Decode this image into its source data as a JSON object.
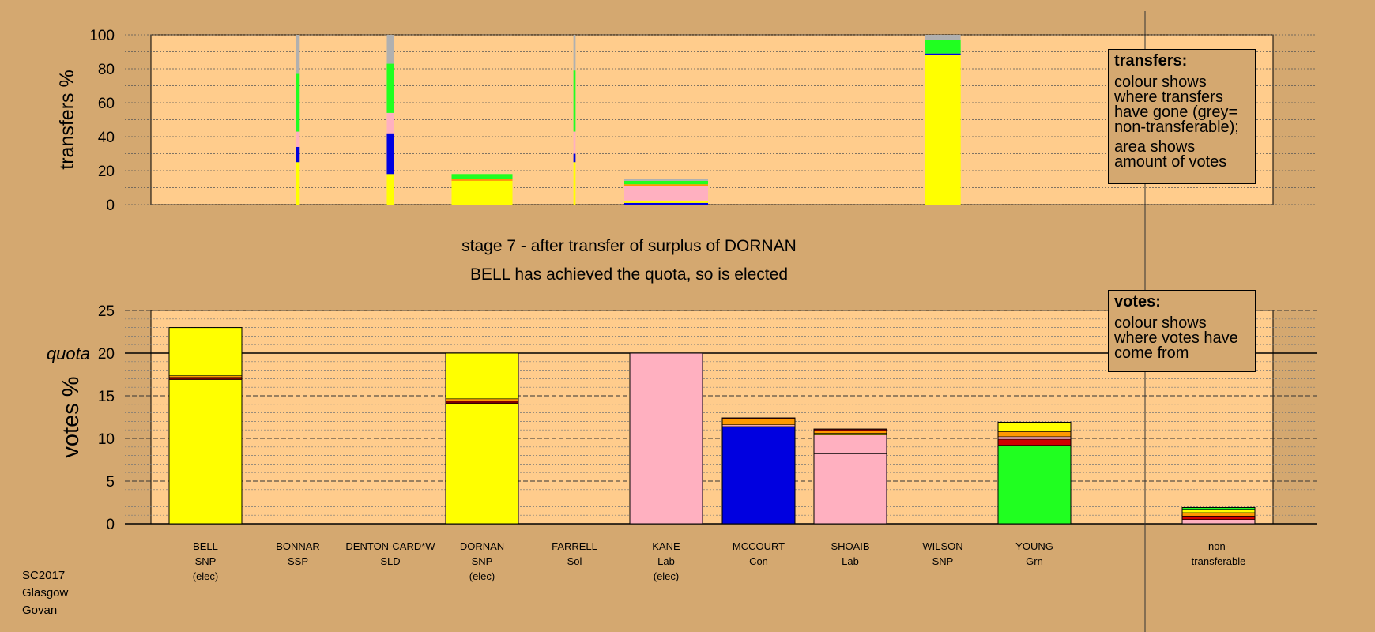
{
  "caption": {
    "line1": "stage 7 - after transfer of surplus of DORNAN",
    "line2": "BELL has achieved the quota, so is elected"
  },
  "legend_transfers": {
    "title": "transfers:",
    "p1": "colour shows where transfers have gone (grey= non-transferable);",
    "p2": "area shows amount of votes"
  },
  "legend_votes": {
    "title": "votes:",
    "p1": "colour shows where votes have come from"
  },
  "corner": {
    "line1": "SC2017",
    "line2": "Glasgow",
    "line3": "Govan"
  },
  "colors": {
    "background": "#d4a870",
    "plot_area": "#ffcc8c",
    "SNP": "#ffff00",
    "Lab": "#ffb0c0",
    "Con": "#0000e0",
    "Grn": "#20ff20",
    "SSP": "#d00000",
    "SLD": "#ff9900",
    "Sol": "#800000",
    "non_transferable": "#b0b0b0"
  },
  "chart_data": [
    {
      "type": "bar",
      "stacked": true,
      "ylabel": "transfers %",
      "ylim": [
        0,
        100
      ],
      "yticks": [
        0,
        20,
        40,
        60,
        80,
        100
      ],
      "grid": true,
      "categories": [
        "BELL",
        "BONNAR",
        "DENTON-CARD*W",
        "DORNAN",
        "FARRELL",
        "KANE",
        "MCCOURT",
        "SHOAIB",
        "WILSON",
        "YOUNG"
      ],
      "width_note": "bar width proportional to amount of votes transferred",
      "bars": [
        {
          "category": "BONNAR",
          "width": 0.05,
          "segments": [
            {
              "party": "SNP",
              "value": 25
            },
            {
              "party": "Con",
              "value": 9
            },
            {
              "party": "Lab",
              "value": 9
            },
            {
              "party": "Grn",
              "value": 34
            },
            {
              "party": "non_transferable",
              "value": 23
            }
          ]
        },
        {
          "category": "DENTON-CARD*W",
          "width": 0.1,
          "segments": [
            {
              "party": "SNP",
              "value": 18
            },
            {
              "party": "Con",
              "value": 24
            },
            {
              "party": "Lab",
              "value": 12
            },
            {
              "party": "Grn",
              "value": 29
            },
            {
              "party": "non_transferable",
              "value": 17
            }
          ]
        },
        {
          "category": "DORNAN",
          "width": 0.85,
          "segments": [
            {
              "party": "SNP",
              "value": 14
            },
            {
              "party": "SLD",
              "value": 1
            },
            {
              "party": "Grn",
              "value": 3
            }
          ]
        },
        {
          "category": "FARRELL",
          "width": 0.03,
          "segments": [
            {
              "party": "SNP",
              "value": 25
            },
            {
              "party": "Con",
              "value": 5
            },
            {
              "party": "Lab",
              "value": 13
            },
            {
              "party": "Grn",
              "value": 36
            },
            {
              "party": "non_transferable",
              "value": 21
            }
          ]
        },
        {
          "category": "KANE",
          "width": 1.17,
          "segments": [
            {
              "party": "Con",
              "value": 1
            },
            {
              "party": "SNP",
              "value": 1
            },
            {
              "party": "Lab",
              "value": 9
            },
            {
              "party": "SLD",
              "value": 1
            },
            {
              "party": "Grn",
              "value": 2
            },
            {
              "party": "non_transferable",
              "value": 1
            }
          ]
        },
        {
          "category": "WILSON",
          "width": 0.5,
          "segments": [
            {
              "party": "SNP",
              "value": 88
            },
            {
              "party": "Con",
              "value": 1
            },
            {
              "party": "Grn",
              "value": 8
            },
            {
              "party": "non_transferable",
              "value": 3
            }
          ]
        }
      ]
    },
    {
      "type": "bar",
      "stacked": true,
      "ylabel": "votes %",
      "ylim": [
        0,
        25
      ],
      "yticks": [
        0,
        5,
        10,
        15,
        20,
        25
      ],
      "grid": true,
      "quota": 20,
      "quota_label": "quota",
      "categories": [
        "BELL",
        "BONNAR",
        "DENTON-CARD*W",
        "DORNAN",
        "FARRELL",
        "KANE",
        "MCCOURT",
        "SHOAIB",
        "WILSON",
        "YOUNG",
        "non-transferable"
      ],
      "candidates": [
        {
          "name": "BELL",
          "party": "SNP",
          "status": "(elec)",
          "segments": [
            {
              "party": "SNP",
              "value": 16.9
            },
            {
              "party": "Sol",
              "value": 0.25
            },
            {
              "party": "SLD",
              "value": 0.2
            },
            {
              "party": "SNP",
              "value": 3.25
            },
            {
              "party": "SNP",
              "value": 2.4
            }
          ]
        },
        {
          "name": "BONNAR",
          "party": "SSP",
          "status": "",
          "segments": []
        },
        {
          "name": "DENTON-CARD*W",
          "party": "SLD",
          "status": "",
          "segments": []
        },
        {
          "name": "DORNAN",
          "party": "SNP",
          "status": "(elec)",
          "segments": [
            {
              "party": "SNP",
              "value": 14.1
            },
            {
              "party": "Sol",
              "value": 0.3
            },
            {
              "party": "SLD",
              "value": 0.25
            },
            {
              "party": "SNP",
              "value": 5.35
            }
          ]
        },
        {
          "name": "FARRELL",
          "party": "Sol",
          "status": "",
          "segments": []
        },
        {
          "name": "KANE",
          "party": "Lab",
          "status": "(elec)",
          "segments": [
            {
              "party": "Lab",
              "value": 20
            }
          ]
        },
        {
          "name": "MCCOURT",
          "party": "Con",
          "status": "",
          "segments": [
            {
              "party": "Con",
              "value": 11.4
            },
            {
              "party": "Lab",
              "value": 0.2
            },
            {
              "party": "SLD",
              "value": 0.7
            },
            {
              "party": "Sol",
              "value": 0.1
            }
          ]
        },
        {
          "name": "SHOAIB",
          "party": "Lab",
          "status": "",
          "segments": [
            {
              "party": "Lab",
              "value": 8.2
            },
            {
              "party": "Lab",
              "value": 2.2
            },
            {
              "party": "SNP",
              "value": 0.2
            },
            {
              "party": "SLD",
              "value": 0.3
            },
            {
              "party": "Sol",
              "value": 0.2
            }
          ]
        },
        {
          "name": "WILSON",
          "party": "SNP",
          "status": "",
          "segments": []
        },
        {
          "name": "YOUNG",
          "party": "Grn",
          "status": "",
          "segments": [
            {
              "party": "Grn",
              "value": 9.2
            },
            {
              "party": "SSP",
              "value": 0.7
            },
            {
              "party": "Lab",
              "value": 0.3
            },
            {
              "party": "SLD",
              "value": 0.6
            },
            {
              "party": "SNP",
              "value": 1.1
            }
          ]
        },
        {
          "name": "non-",
          "party": "transferable",
          "status": "",
          "segments": [
            {
              "party": "Lab",
              "value": 0.5
            },
            {
              "party": "SSP",
              "value": 0.3
            },
            {
              "party": "Sol",
              "value": 0.1
            },
            {
              "party": "SLD",
              "value": 0.4
            },
            {
              "party": "SNP",
              "value": 0.4
            },
            {
              "party": "Grn",
              "value": 0.2
            }
          ]
        }
      ]
    }
  ]
}
